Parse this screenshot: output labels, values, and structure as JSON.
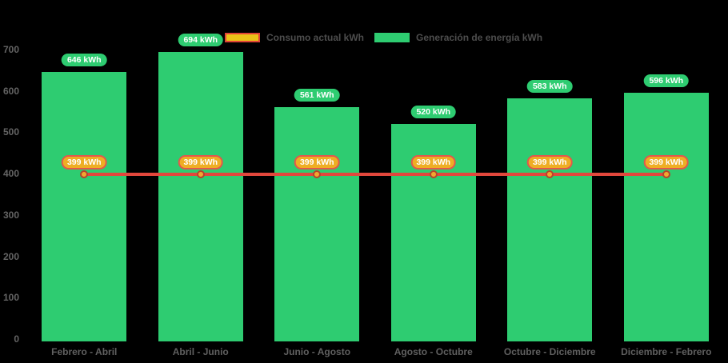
{
  "legend": {
    "items": [
      {
        "id": "consumption",
        "label": "Consumo actual kWh"
      },
      {
        "id": "generation",
        "label": "Generación de energía kWh"
      }
    ]
  },
  "colors": {
    "background": "#000000",
    "bar_green": "#2ecc71",
    "line_red": "#e2473c",
    "amber_badge_fill": "#eeae24",
    "amber_badge_border": "#e2574c",
    "legend_yellow_fill": "#e9c217",
    "legend_red_border": "#e04437",
    "point_fill": "#f0a830",
    "point_border": "#b5442c",
    "axis_text": "#646464",
    "legend_text": "#4d4d4d",
    "badge_text": "#ffffff"
  },
  "chart_data": {
    "type": "bar",
    "title": "",
    "xlabel": "",
    "ylabel": "",
    "unit_suffix": " kWh",
    "categories": [
      "Febrero - Abril",
      "Abril - Junio",
      "Junio - Agosto",
      "Agosto - Octubre",
      "Octubre - Diciembre",
      "Diciembre - Febrero"
    ],
    "series": [
      {
        "name": "Generación de energía kWh",
        "type": "bar",
        "color": "#2ecc71",
        "values": [
          646,
          694,
          561,
          520,
          583,
          596
        ]
      },
      {
        "name": "Consumo actual kWh",
        "type": "line",
        "color": "#e2473c",
        "values": [
          399,
          399,
          399,
          399,
          399,
          399
        ]
      }
    ],
    "ylim": [
      0,
      700
    ],
    "yticks": [
      0,
      100,
      200,
      300,
      400,
      500,
      600,
      700
    ],
    "grid": false,
    "legend_position": "top"
  }
}
